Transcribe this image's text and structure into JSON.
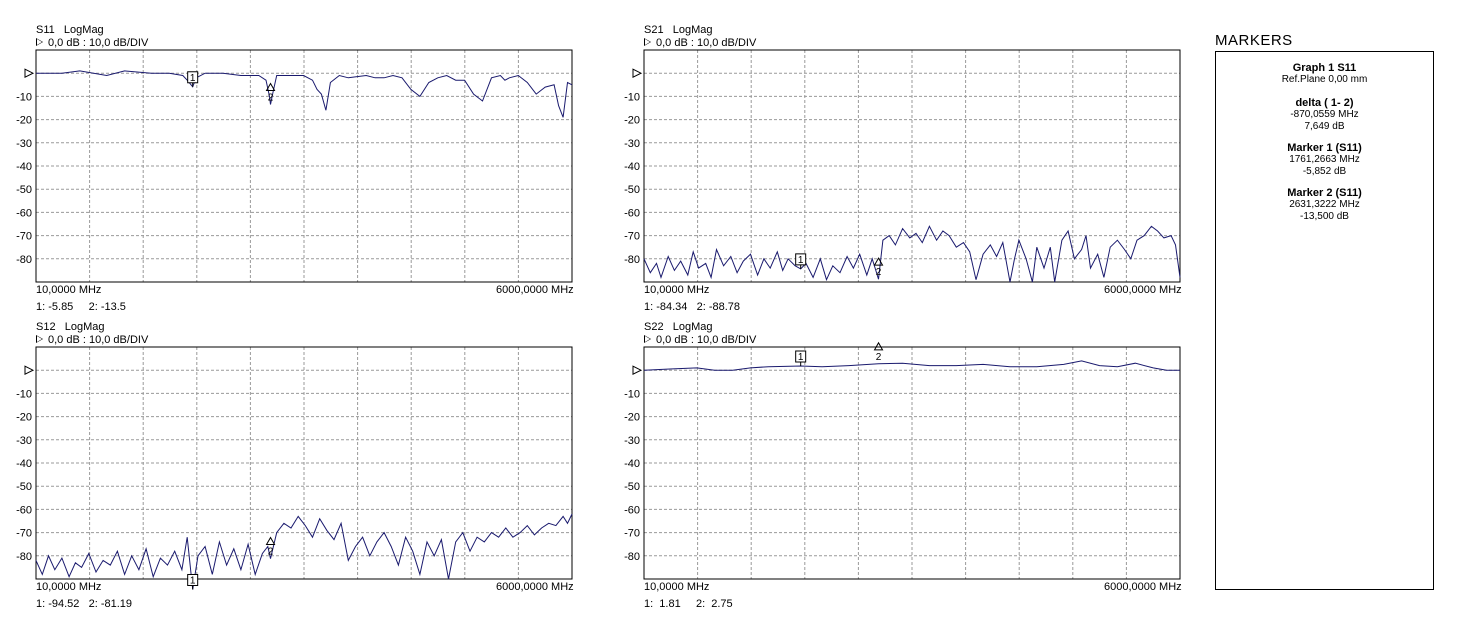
{
  "markers_panel": {
    "title": "MARKERS",
    "graph": "Graph 1 S11",
    "ref_plane": "Ref.Plane 0,00 mm",
    "delta_head": "delta ( 1- 2)",
    "delta_freq": "-870,0559 MHz",
    "delta_val": "7,649 dB",
    "m1_head": "Marker  1 (S11)",
    "m1_freq": "1761,2663 MHz",
    "m1_val": "-5,852 dB",
    "m2_head": "Marker  2 (S11)",
    "m2_freq": "2631,3222 MHz",
    "m2_val": "-13,500 dB"
  },
  "chart_data": [
    {
      "type": "line",
      "param": "S11",
      "format": "LogMag",
      "title": "S11   LogMag",
      "scale": "0,0 dB : 10,0 dB/DIV",
      "xstart": "10,0000 MHz",
      "xstop": "6000,0000 MHz",
      "xlim": [
        10,
        6000
      ],
      "ylim": [
        -90,
        10
      ],
      "y_ticks": [
        "",
        "-10",
        "-20",
        "-30",
        "-40",
        "-50",
        "-60",
        "-70",
        "-80"
      ],
      "readout": "1: -5.85     2: -13.5",
      "trace_color": "#1a1a6e",
      "series": [
        {
          "x": [
            10,
            300,
            500,
            800,
            1000,
            1300,
            1500,
            1650,
            1700,
            1761,
            1800,
            1900,
            2100,
            2300,
            2500,
            2580,
            2620,
            2631,
            2660,
            2700,
            2900,
            3000,
            3100,
            3150,
            3200,
            3250,
            3300,
            3400,
            3500,
            3700,
            3800,
            3900,
            4000,
            4100,
            4200,
            4300,
            4400,
            4500,
            4600,
            4700,
            4800,
            4900,
            5000,
            5100,
            5200,
            5250,
            5300,
            5400,
            5500,
            5600,
            5700,
            5800,
            5850,
            5900,
            5950,
            6000
          ],
          "y": [
            0,
            0,
            1,
            -1,
            1,
            0,
            0,
            -1,
            -3,
            -5.85,
            -2,
            0,
            0,
            -1,
            -1,
            -3,
            -10,
            -13.5,
            -8,
            -1,
            -1,
            -1,
            -3,
            -7,
            -9,
            -16,
            -4,
            -1,
            -2,
            -1,
            -2,
            -2,
            -1,
            -2,
            -7,
            -10,
            -4,
            -2,
            -1,
            -3,
            -3,
            -9,
            -12,
            -2,
            -1,
            -3,
            -2,
            -1,
            -4,
            -9,
            -6,
            -5,
            -14,
            -19,
            -4,
            -5
          ]
        }
      ],
      "markers": [
        {
          "label": "1",
          "x": 1761,
          "y": -5.85
        },
        {
          "label": "2",
          "x": 2631,
          "y": -13.5
        }
      ]
    },
    {
      "type": "line",
      "param": "S21",
      "format": "LogMag",
      "title": "S21   LogMag",
      "scale": "0,0 dB : 10,0 dB/DIV",
      "xstart": "10,0000 MHz",
      "xstop": "6000,0000 MHz",
      "xlim": [
        10,
        6000
      ],
      "ylim": [
        -90,
        10
      ],
      "y_ticks": [
        "",
        "-10",
        "-20",
        "-30",
        "-40",
        "-50",
        "-60",
        "-70",
        "-80"
      ],
      "readout": "1: -84.34   2: -88.78",
      "trace_color": "#1a1a6e",
      "series": [
        {
          "x": [
            10,
            80,
            150,
            200,
            280,
            350,
            420,
            500,
            560,
            620,
            700,
            760,
            820,
            900,
            980,
            1050,
            1120,
            1200,
            1280,
            1350,
            1420,
            1500,
            1560,
            1620,
            1700,
            1761,
            1820,
            1900,
            1980,
            2050,
            2120,
            2200,
            2280,
            2350,
            2420,
            2500,
            2560,
            2600,
            2631,
            2680,
            2750,
            2820,
            2900,
            2980,
            3050,
            3120,
            3200,
            3280,
            3350,
            3420,
            3500,
            3580,
            3650,
            3720,
            3800,
            3880,
            3950,
            4020,
            4100,
            4150,
            4200,
            4280,
            4350,
            4400,
            4480,
            4550,
            4600,
            4680,
            4750,
            4820,
            4900,
            4950,
            5000,
            5080,
            5150,
            5220,
            5300,
            5380,
            5450,
            5520,
            5600,
            5680,
            5750,
            5820,
            5900,
            5950,
            6000
          ],
          "y": [
            -80,
            -86,
            -82,
            -88,
            -79,
            -85,
            -81,
            -87,
            -77,
            -84,
            -82,
            -88,
            -76,
            -83,
            -79,
            -86,
            -81,
            -78,
            -87,
            -80,
            -84,
            -77,
            -85,
            -80,
            -83,
            -84.34,
            -82,
            -88,
            -80,
            -89,
            -83,
            -86,
            -79,
            -84,
            -78,
            -87,
            -80,
            -85,
            -88.78,
            -72,
            -70,
            -74,
            -67,
            -71,
            -69,
            -73,
            -66,
            -72,
            -68,
            -70,
            -75,
            -73,
            -77,
            -89,
            -78,
            -74,
            -79,
            -73,
            -90,
            -80,
            -72,
            -80,
            -90,
            -75,
            -84,
            -75,
            -90,
            -72,
            -68,
            -80,
            -76,
            -70,
            -84,
            -78,
            -88,
            -75,
            -72,
            -76,
            -80,
            -72,
            -70,
            -66,
            -68,
            -71,
            -70,
            -74,
            -88
          ]
        }
      ],
      "markers": [
        {
          "label": "1",
          "x": 1761,
          "y": -84.34
        },
        {
          "label": "2",
          "x": 2631,
          "y": -88.78
        }
      ]
    },
    {
      "type": "line",
      "param": "S12",
      "format": "LogMag",
      "title": "S12   LogMag",
      "scale": "0,0 dB : 10,0 dB/DIV",
      "xstart": "10,0000 MHz",
      "xstop": "6000,0000 MHz",
      "xlim": [
        10,
        6000
      ],
      "ylim": [
        -90,
        10
      ],
      "y_ticks": [
        "",
        "-10",
        "-20",
        "-30",
        "-40",
        "-50",
        "-60",
        "-70",
        "-80"
      ],
      "readout": "1: -94.52   2: -81.19",
      "trace_color": "#1a1a6e",
      "series": [
        {
          "x": [
            10,
            80,
            150,
            220,
            300,
            380,
            450,
            520,
            600,
            680,
            760,
            840,
            920,
            1000,
            1080,
            1160,
            1240,
            1320,
            1400,
            1480,
            1560,
            1640,
            1700,
            1761,
            1820,
            1900,
            1980,
            2060,
            2140,
            2220,
            2300,
            2380,
            2460,
            2540,
            2600,
            2631,
            2700,
            2780,
            2860,
            2940,
            3020,
            3100,
            3180,
            3260,
            3340,
            3420,
            3500,
            3580,
            3660,
            3740,
            3820,
            3900,
            3980,
            4060,
            4140,
            4220,
            4300,
            4380,
            4460,
            4540,
            4620,
            4700,
            4780,
            4860,
            4940,
            5020,
            5100,
            5180,
            5260,
            5340,
            5420,
            5500,
            5580,
            5660,
            5740,
            5820,
            5900,
            5950,
            6000
          ],
          "y": [
            -82,
            -88,
            -80,
            -86,
            -81,
            -89,
            -83,
            -85,
            -79,
            -87,
            -82,
            -84,
            -78,
            -88,
            -80,
            -86,
            -77,
            -89,
            -81,
            -84,
            -78,
            -86,
            -72,
            -94.52,
            -80,
            -76,
            -88,
            -74,
            -84,
            -77,
            -86,
            -75,
            -88,
            -79,
            -76,
            -81.19,
            -70,
            -66,
            -68,
            -63,
            -67,
            -72,
            -64,
            -69,
            -73,
            -66,
            -82,
            -76,
            -72,
            -80,
            -74,
            -70,
            -76,
            -84,
            -72,
            -78,
            -88,
            -74,
            -80,
            -73,
            -90,
            -74,
            -70,
            -78,
            -72,
            -74,
            -70,
            -72,
            -68,
            -72,
            -70,
            -67,
            -71,
            -68,
            -66,
            -67,
            -63,
            -66,
            -62
          ]
        }
      ],
      "markers": [
        {
          "label": "1",
          "x": 1761,
          "y": -94.52
        },
        {
          "label": "2",
          "x": 2631,
          "y": -81.19
        }
      ]
    },
    {
      "type": "line",
      "param": "S22",
      "format": "LogMag",
      "title": "S22   LogMag",
      "scale": "0,0 dB : 10,0 dB/DIV",
      "xstart": "10,0000 MHz",
      "xstop": "6000,0000 MHz",
      "xlim": [
        10,
        6000
      ],
      "ylim": [
        -90,
        10
      ],
      "y_ticks": [
        "",
        "-10",
        "-20",
        "-30",
        "-40",
        "-50",
        "-60",
        "-70",
        "-80"
      ],
      "readout": "1:  1.81     2:  2.75",
      "trace_color": "#1a1a6e",
      "series": [
        {
          "x": [
            10,
            300,
            600,
            800,
            1000,
            1200,
            1400,
            1761,
            2000,
            2300,
            2631,
            2900,
            3200,
            3500,
            3800,
            4100,
            4400,
            4700,
            4900,
            5100,
            5300,
            5500,
            5700,
            5850,
            6000
          ],
          "y": [
            0,
            0.5,
            1,
            0,
            0,
            1,
            1.5,
            1.81,
            1.5,
            2,
            2.75,
            3,
            2,
            2,
            2.5,
            1.5,
            1.5,
            2.5,
            4,
            2,
            1.5,
            3,
            1,
            0,
            0
          ]
        }
      ],
      "markers": [
        {
          "label": "1",
          "x": 1761,
          "y": 1.81
        },
        {
          "label": "2",
          "x": 2631,
          "y": 2.75
        }
      ]
    }
  ]
}
